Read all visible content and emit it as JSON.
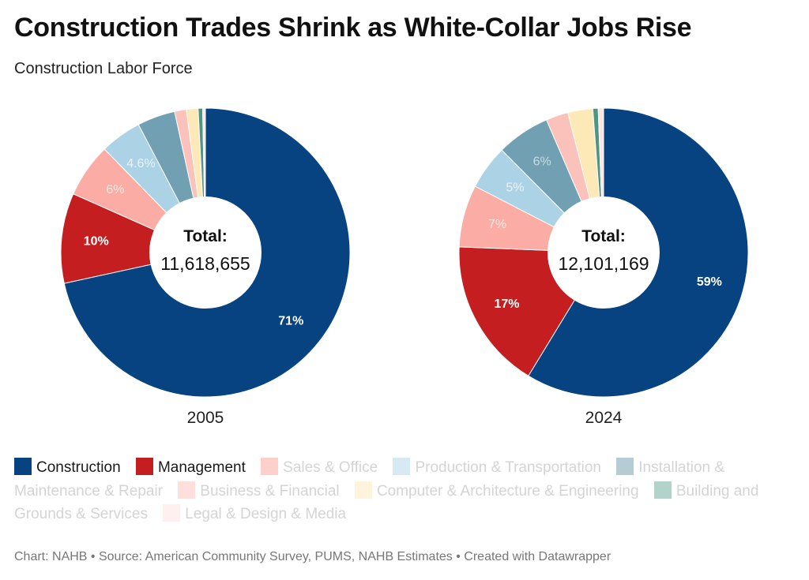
{
  "title": "Construction Trades Shrink as White-Collar Jobs Rise",
  "subtitle": "Construction Labor Force",
  "total_label": "Total:",
  "footer": "Chart: NAHB • Source: American Community Survey, PUMS, NAHB Estimates • Created with Datawrapper",
  "chart_data": [
    {
      "type": "pie",
      "style": "donut",
      "label": "2005",
      "total": "11,618,655",
      "slices": [
        {
          "name": "Construction",
          "value": 71,
          "label": "71%",
          "color": "#074380",
          "label_color": "#ffffff"
        },
        {
          "name": "Management",
          "value": 10,
          "label": "10%",
          "color": "#c41e20",
          "label_color": "#ffffff"
        },
        {
          "name": "Sales & Office",
          "value": 6,
          "label": "6%",
          "color": "#fbada5",
          "label_color": "#fde6e2"
        },
        {
          "name": "Production & Transportation",
          "value": 4.6,
          "label": "4.6%",
          "color": "#acd2e6",
          "label_color": "#e9f3f9"
        },
        {
          "name": "Installation & Maintenance & Repair",
          "value": 4.2,
          "label": "",
          "color": "#71a0b2",
          "label_color": "#ffffff"
        },
        {
          "name": "Business & Financial",
          "value": 1.3,
          "label": "",
          "color": "#fbc1bb",
          "label_color": "#ffffff"
        },
        {
          "name": "Computer & Architecture & Engineering",
          "value": 1.3,
          "label": "",
          "color": "#fde9b8",
          "label_color": "#ffffff"
        },
        {
          "name": "Building and Grounds & Services",
          "value": 0.5,
          "label": "",
          "color": "#4f9682",
          "label_color": "#ffffff"
        },
        {
          "name": "Legal & Design & Media",
          "value": 0.3,
          "label": "",
          "color": "#fde4e1",
          "label_color": "#ffffff"
        }
      ]
    },
    {
      "type": "pie",
      "style": "donut",
      "label": "2024",
      "total": "12,101,169",
      "slices": [
        {
          "name": "Construction",
          "value": 59,
          "label": "59%",
          "color": "#074380",
          "label_color": "#ffffff"
        },
        {
          "name": "Management",
          "value": 17,
          "label": "17%",
          "color": "#c41e20",
          "label_color": "#ffffff"
        },
        {
          "name": "Sales & Office",
          "value": 7,
          "label": "7%",
          "color": "#fbada5",
          "label_color": "#fde6e2"
        },
        {
          "name": "Production & Transportation",
          "value": 5,
          "label": "5%",
          "color": "#acd2e6",
          "label_color": "#e9f3f9"
        },
        {
          "name": "Installation & Maintenance & Repair",
          "value": 6,
          "label": "6%",
          "color": "#71a0b2",
          "label_color": "#c9dde5"
        },
        {
          "name": "Business & Financial",
          "value": 2.5,
          "label": "",
          "color": "#fbc1bb",
          "label_color": "#ffffff"
        },
        {
          "name": "Computer & Architecture & Engineering",
          "value": 2.8,
          "label": "",
          "color": "#fde9b8",
          "label_color": "#ffffff"
        },
        {
          "name": "Building and Grounds & Services",
          "value": 0.6,
          "label": "",
          "color": "#4f9682",
          "label_color": "#ffffff"
        },
        {
          "name": "Legal & Design & Media",
          "value": 0.6,
          "label": "",
          "color": "#fde4e1",
          "label_color": "#ffffff"
        }
      ]
    }
  ],
  "legend": [
    {
      "label": "Construction",
      "color": "#074380",
      "muted": false
    },
    {
      "label": "Management",
      "color": "#c41e20",
      "muted": false
    },
    {
      "label": "Sales & Office",
      "color": "#fdd0cb",
      "muted": true
    },
    {
      "label": "Production & Transportation",
      "color": "#d7e9f2",
      "muted": true
    },
    {
      "label": "Installation & Maintenance & Repair",
      "color": "#b5ccd5",
      "muted": true
    },
    {
      "label": "Business & Financial",
      "color": "#fde0dc",
      "muted": true
    },
    {
      "label": "Computer & Architecture & Engineering",
      "color": "#fef4dc",
      "muted": true
    },
    {
      "label": "Building and Grounds & Services",
      "color": "#b2d3ca",
      "muted": true
    },
    {
      "label": "Legal & Design & Media",
      "color": "#fef0ee",
      "muted": true
    }
  ]
}
